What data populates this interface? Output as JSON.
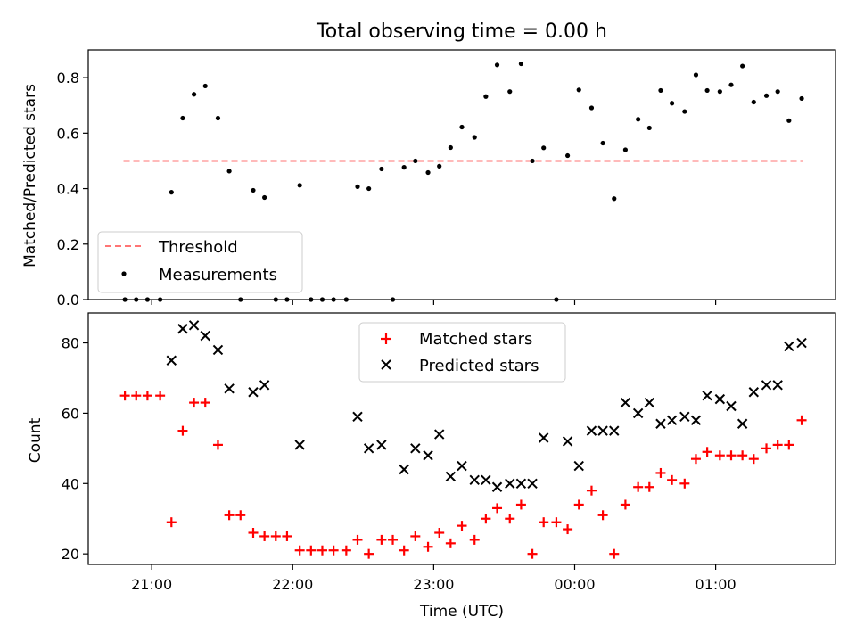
{
  "figure": {
    "title": "Total observing time = 0.00 h",
    "xlabel": "Time (UTC)"
  },
  "chart_data": [
    {
      "type": "scatter",
      "ylabel": "Matched/Predicted stars",
      "ylim": [
        0,
        0.9
      ],
      "xlim": [
        -0.45,
        4.85
      ],
      "yticks": [
        0.0,
        0.2,
        0.4,
        0.6,
        0.8
      ],
      "ytick_labels": [
        "0.0",
        "0.2",
        "0.4",
        "0.6",
        "0.8"
      ],
      "x_tick_positions": [
        0,
        1,
        2,
        3,
        4
      ],
      "show_x_tick_labels": false,
      "grid": false,
      "legend": {
        "position": "lower-left",
        "entries": [
          {
            "label": "Threshold",
            "marker": "dashed-line",
            "color": "#ff7575"
          },
          {
            "label": "Measurements",
            "marker": "dot",
            "color": "#000000"
          }
        ]
      },
      "threshold": {
        "y": 0.5,
        "x": [
          -0.2,
          4.62
        ],
        "color": "#ff7575"
      },
      "series": [
        {
          "name": "Measurements",
          "marker": "dot",
          "color": "#000000",
          "points": [
            [
              -0.19,
              0.0
            ],
            [
              -0.11,
              0.0
            ],
            [
              -0.03,
              0.0
            ],
            [
              0.06,
              0.0
            ],
            [
              0.14,
              0.387
            ],
            [
              0.22,
              0.654
            ],
            [
              0.3,
              0.74
            ],
            [
              0.38,
              0.77
            ],
            [
              0.47,
              0.654
            ],
            [
              0.55,
              0.463
            ],
            [
              0.63,
              0.0
            ],
            [
              0.72,
              0.394
            ],
            [
              0.8,
              0.368
            ],
            [
              0.88,
              0.0
            ],
            [
              0.96,
              0.0
            ],
            [
              1.05,
              0.412
            ],
            [
              1.13,
              0.0
            ],
            [
              1.21,
              0.0
            ],
            [
              1.29,
              0.0
            ],
            [
              1.38,
              0.0
            ],
            [
              1.46,
              0.407
            ],
            [
              1.54,
              0.4
            ],
            [
              1.63,
              0.471
            ],
            [
              1.71,
              0.0
            ],
            [
              1.79,
              0.477
            ],
            [
              1.87,
              0.5
            ],
            [
              1.96,
              0.458
            ],
            [
              2.04,
              0.481
            ],
            [
              2.12,
              0.548
            ],
            [
              2.2,
              0.622
            ],
            [
              2.29,
              0.585
            ],
            [
              2.37,
              0.732
            ],
            [
              2.45,
              0.846
            ],
            [
              2.54,
              0.75
            ],
            [
              2.62,
              0.85
            ],
            [
              2.7,
              0.5
            ],
            [
              2.78,
              0.547
            ],
            [
              2.87,
              0.0
            ],
            [
              2.95,
              0.519
            ],
            [
              3.03,
              0.756
            ],
            [
              3.12,
              0.691
            ],
            [
              3.2,
              0.564
            ],
            [
              3.28,
              0.364
            ],
            [
              3.36,
              0.54
            ],
            [
              3.45,
              0.65
            ],
            [
              3.53,
              0.619
            ],
            [
              3.61,
              0.754
            ],
            [
              3.69,
              0.708
            ],
            [
              3.78,
              0.678
            ],
            [
              3.86,
              0.81
            ],
            [
              3.94,
              0.754
            ],
            [
              4.03,
              0.75
            ],
            [
              4.11,
              0.774
            ],
            [
              4.19,
              0.842
            ],
            [
              4.27,
              0.712
            ],
            [
              4.36,
              0.735
            ],
            [
              4.44,
              0.75
            ],
            [
              4.52,
              0.645
            ],
            [
              4.61,
              0.725
            ]
          ]
        }
      ]
    },
    {
      "type": "scatter",
      "ylabel": "Count",
      "xlabel": "Time (UTC)",
      "ylim": [
        17,
        88.5
      ],
      "xlim": [
        -0.45,
        4.85
      ],
      "yticks": [
        20,
        40,
        60,
        80
      ],
      "ytick_labels": [
        "20",
        "40",
        "60",
        "80"
      ],
      "x_tick_positions": [
        0,
        1,
        2,
        3,
        4
      ],
      "x_tick_labels": [
        "21:00",
        "22:00",
        "23:00",
        "00:00",
        "01:00"
      ],
      "grid": false,
      "legend": {
        "position": "upper-center",
        "entries": [
          {
            "label": "Matched stars",
            "marker": "plus",
            "color": "#ff0000"
          },
          {
            "label": "Predicted stars",
            "marker": "x",
            "color": "#000000"
          }
        ]
      },
      "series": [
        {
          "name": "Matched stars",
          "marker": "plus",
          "color": "#ff0000",
          "points": [
            [
              -0.19,
              65
            ],
            [
              -0.11,
              65
            ],
            [
              -0.03,
              65
            ],
            [
              0.06,
              65
            ],
            [
              0.14,
              29
            ],
            [
              0.22,
              55
            ],
            [
              0.3,
              63
            ],
            [
              0.38,
              63
            ],
            [
              0.47,
              51
            ],
            [
              0.55,
              31
            ],
            [
              0.63,
              31
            ],
            [
              0.72,
              26
            ],
            [
              0.8,
              25
            ],
            [
              0.88,
              25
            ],
            [
              0.96,
              25
            ],
            [
              1.05,
              21
            ],
            [
              1.13,
              21
            ],
            [
              1.21,
              21
            ],
            [
              1.29,
              21
            ],
            [
              1.38,
              21
            ],
            [
              1.46,
              24
            ],
            [
              1.54,
              20
            ],
            [
              1.63,
              24
            ],
            [
              1.71,
              24
            ],
            [
              1.79,
              21
            ],
            [
              1.87,
              25
            ],
            [
              1.96,
              22
            ],
            [
              2.04,
              26
            ],
            [
              2.12,
              23
            ],
            [
              2.2,
              28
            ],
            [
              2.29,
              24
            ],
            [
              2.37,
              30
            ],
            [
              2.45,
              33
            ],
            [
              2.54,
              30
            ],
            [
              2.62,
              34
            ],
            [
              2.7,
              20
            ],
            [
              2.78,
              29
            ],
            [
              2.87,
              29
            ],
            [
              2.95,
              27
            ],
            [
              3.03,
              34
            ],
            [
              3.12,
              38
            ],
            [
              3.2,
              31
            ],
            [
              3.28,
              20
            ],
            [
              3.36,
              34
            ],
            [
              3.45,
              39
            ],
            [
              3.53,
              39
            ],
            [
              3.61,
              43
            ],
            [
              3.69,
              41
            ],
            [
              3.78,
              40
            ],
            [
              3.86,
              47
            ],
            [
              3.94,
              49
            ],
            [
              4.03,
              48
            ],
            [
              4.11,
              48
            ],
            [
              4.19,
              48
            ],
            [
              4.27,
              47
            ],
            [
              4.36,
              50
            ],
            [
              4.44,
              51
            ],
            [
              4.52,
              51
            ],
            [
              4.61,
              58
            ]
          ]
        },
        {
          "name": "Predicted stars",
          "marker": "x",
          "color": "#000000",
          "points": [
            [
              0.14,
              75
            ],
            [
              0.22,
              84
            ],
            [
              0.3,
              85
            ],
            [
              0.38,
              82
            ],
            [
              0.47,
              78
            ],
            [
              0.55,
              67
            ],
            [
              0.72,
              66
            ],
            [
              0.8,
              68
            ],
            [
              1.05,
              51
            ],
            [
              1.46,
              59
            ],
            [
              1.54,
              50
            ],
            [
              1.63,
              51
            ],
            [
              1.79,
              44
            ],
            [
              1.87,
              50
            ],
            [
              1.96,
              48
            ],
            [
              2.04,
              54
            ],
            [
              2.12,
              42
            ],
            [
              2.2,
              45
            ],
            [
              2.29,
              41
            ],
            [
              2.37,
              41
            ],
            [
              2.45,
              39
            ],
            [
              2.54,
              40
            ],
            [
              2.62,
              40
            ],
            [
              2.7,
              40
            ],
            [
              2.78,
              53
            ],
            [
              2.95,
              52
            ],
            [
              3.03,
              45
            ],
            [
              3.12,
              55
            ],
            [
              3.2,
              55
            ],
            [
              3.28,
              55
            ],
            [
              3.36,
              63
            ],
            [
              3.45,
              60
            ],
            [
              3.53,
              63
            ],
            [
              3.61,
              57
            ],
            [
              3.69,
              58
            ],
            [
              3.78,
              59
            ],
            [
              3.86,
              58
            ],
            [
              3.94,
              65
            ],
            [
              4.03,
              64
            ],
            [
              4.11,
              62
            ],
            [
              4.19,
              57
            ],
            [
              4.27,
              66
            ],
            [
              4.36,
              68
            ],
            [
              4.44,
              68
            ],
            [
              4.52,
              79
            ],
            [
              4.61,
              80
            ]
          ]
        }
      ]
    }
  ]
}
